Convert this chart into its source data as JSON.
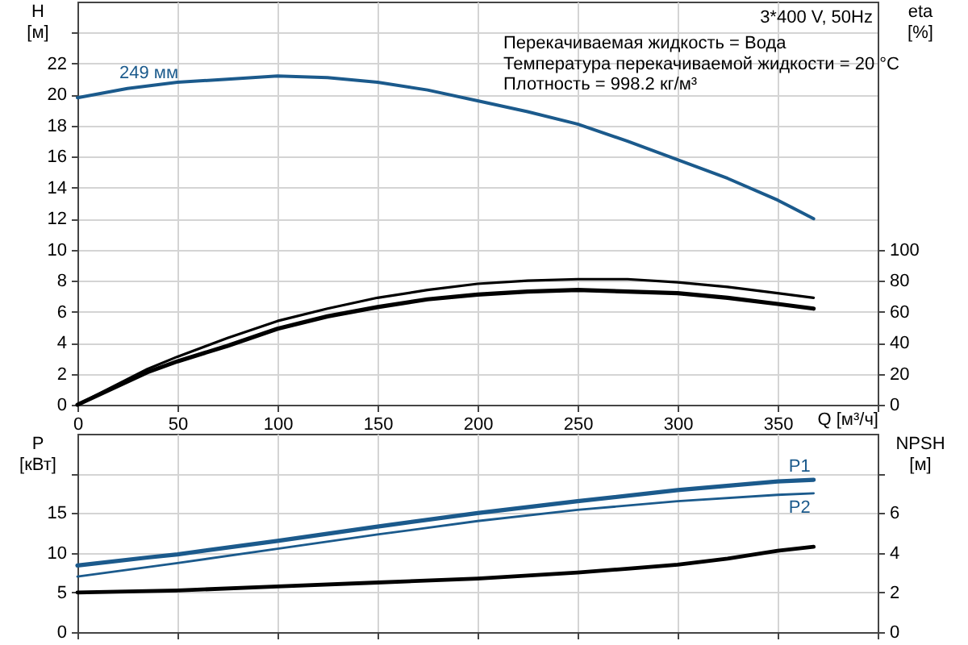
{
  "chart_data": [
    {
      "type": "line",
      "title": "3*400 V, 50Hz",
      "xlabel": "Q [м³/ч]",
      "ylabel": "H [м]",
      "y2label": "eta [%]",
      "xlim": [
        0,
        400
      ],
      "xticks": [
        0,
        50,
        100,
        150,
        200,
        250,
        300,
        350,
        {
          "value": 400,
          "label": null
        }
      ],
      "ylim": [
        0,
        26
      ],
      "yticks": [
        0,
        2,
        4,
        6,
        8,
        10,
        12,
        14,
        16,
        18,
        20,
        22,
        {
          "value": 24,
          "label": null
        }
      ],
      "y2lim": [
        0,
        260
      ],
      "y2ticks": [
        0,
        20,
        40,
        60,
        80,
        100
      ],
      "grid": true,
      "annotations": [
        "Перекачиваемая жидкость = Вода",
        "Температура перекачиваемой жидкости = 20 °C",
        "Плотность = 998.2 кг/м³"
      ],
      "series": [
        {
          "name": "249 мм",
          "color": "#1b5a8c",
          "x": [
            0,
            25,
            50,
            75,
            100,
            125,
            150,
            175,
            200,
            225,
            250,
            275,
            300,
            325,
            350,
            368
          ],
          "values": [
            19.8,
            20.4,
            20.8,
            21.0,
            21.2,
            21.1,
            20.8,
            20.3,
            19.6,
            18.9,
            18.1,
            17.0,
            15.8,
            14.6,
            13.2,
            12.0
          ]
        },
        {
          "color": "#000000",
          "axis": "y2",
          "x": [
            0,
            35,
            50,
            75,
            100,
            125,
            150,
            175,
            200,
            225,
            250,
            275,
            300,
            325,
            350,
            368
          ],
          "values": [
            0,
            23,
            31,
            43,
            54,
            62,
            69,
            74,
            78,
            80,
            81,
            81,
            79,
            76,
            72,
            69
          ]
        },
        {
          "color": "#000000",
          "axis": "y2",
          "x": [
            0,
            35,
            50,
            75,
            100,
            125,
            150,
            175,
            200,
            225,
            250,
            275,
            300,
            325,
            350,
            368
          ],
          "values": [
            0,
            21,
            28,
            38,
            49,
            57,
            63,
            68,
            71,
            73,
            74,
            73,
            72,
            69,
            65,
            62
          ]
        }
      ]
    },
    {
      "type": "line",
      "ylabel": "P [кВт]",
      "y2label": "NPSH [м]",
      "tick_labels": "y",
      "xlim": [
        0,
        400
      ],
      "xticks": [
        0,
        50,
        100,
        150,
        200,
        250,
        300,
        350,
        400
      ],
      "ylim": [
        0,
        25
      ],
      "yticks": [
        0,
        5,
        10,
        15,
        {
          "value": 20,
          "label": null
        }
      ],
      "y2lim": [
        0,
        10
      ],
      "y2ticks": [
        0,
        2,
        4,
        6,
        {
          "value": 8,
          "label": null
        }
      ],
      "grid": true,
      "series": [
        {
          "name": "P1",
          "color": "#1b5a8c",
          "x": [
            0,
            35,
            50,
            100,
            150,
            200,
            250,
            300,
            350,
            368
          ],
          "values": [
            8.4,
            9.4,
            9.8,
            11.5,
            13.3,
            15.0,
            16.5,
            17.9,
            19.0,
            19.2
          ]
        },
        {
          "name": "P2",
          "color": "#1b5a8c",
          "x": [
            0,
            50,
            100,
            150,
            200,
            250,
            300,
            350,
            368
          ],
          "values": [
            7.0,
            8.7,
            10.5,
            12.3,
            14.0,
            15.4,
            16.5,
            17.3,
            17.5
          ]
        },
        {
          "color": "#000000",
          "axis": "y2",
          "x": [
            0,
            50,
            100,
            150,
            200,
            250,
            275,
            300,
            325,
            350,
            368
          ],
          "values": [
            2.0,
            2.1,
            2.3,
            2.5,
            2.7,
            3.0,
            3.2,
            3.4,
            3.7,
            4.1,
            4.3
          ]
        }
      ]
    }
  ]
}
